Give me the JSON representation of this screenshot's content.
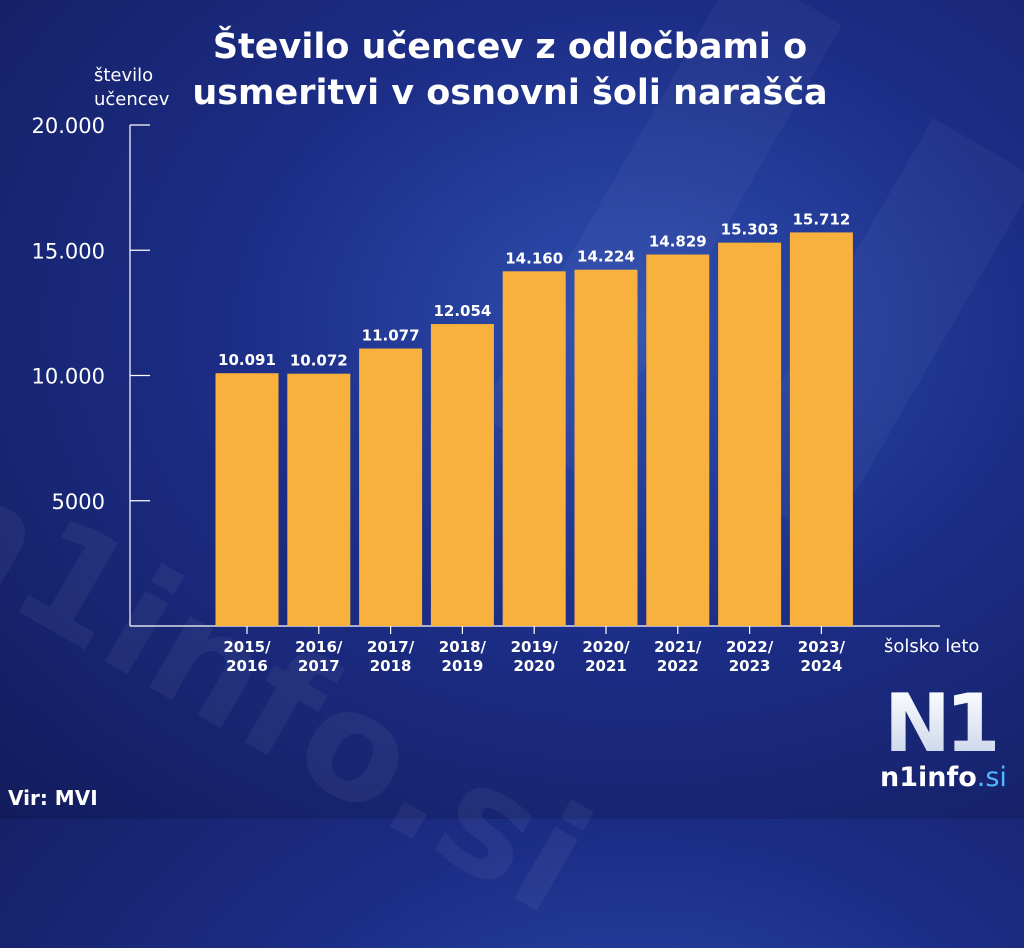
{
  "chart_data": {
    "type": "bar",
    "title_lines": [
      "Število učencev z odločbami o",
      "usmeritvi v osnovni šoli narašča"
    ],
    "ylabel_lines": [
      "število",
      "učencev"
    ],
    "xlabel": "šolsko leto",
    "ylim": [
      0,
      20000
    ],
    "yticks": [
      5000,
      10000,
      15000,
      20000
    ],
    "ytick_labels": [
      "5000",
      "10.000",
      "15.000",
      "20.000"
    ],
    "categories": [
      [
        "2015/",
        "2016"
      ],
      [
        "2016/",
        "2017"
      ],
      [
        "2017/",
        "2018"
      ],
      [
        "2018/",
        "2019"
      ],
      [
        "2019/",
        "2020"
      ],
      [
        "2020/",
        "2021"
      ],
      [
        "2021/",
        "2022"
      ],
      [
        "2022/",
        "2023"
      ],
      [
        "2023/",
        "2024"
      ]
    ],
    "values": [
      10091,
      10072,
      11077,
      12054,
      14160,
      14224,
      14829,
      15303,
      15712
    ],
    "value_labels": [
      "10.091",
      "10.072",
      "11.077",
      "12.054",
      "14.160",
      "14.224",
      "14.829",
      "15.303",
      "15.712"
    ],
    "grid": false,
    "bar_color": "#f9b13d"
  },
  "source": "Vir: MVI",
  "logo": {
    "mark": "N1",
    "site_main": "n1info",
    "site_dot": ".si"
  },
  "watermark": "n1info.si",
  "colors": {
    "background": "#1c2d86",
    "accent": "#52b7ff"
  }
}
